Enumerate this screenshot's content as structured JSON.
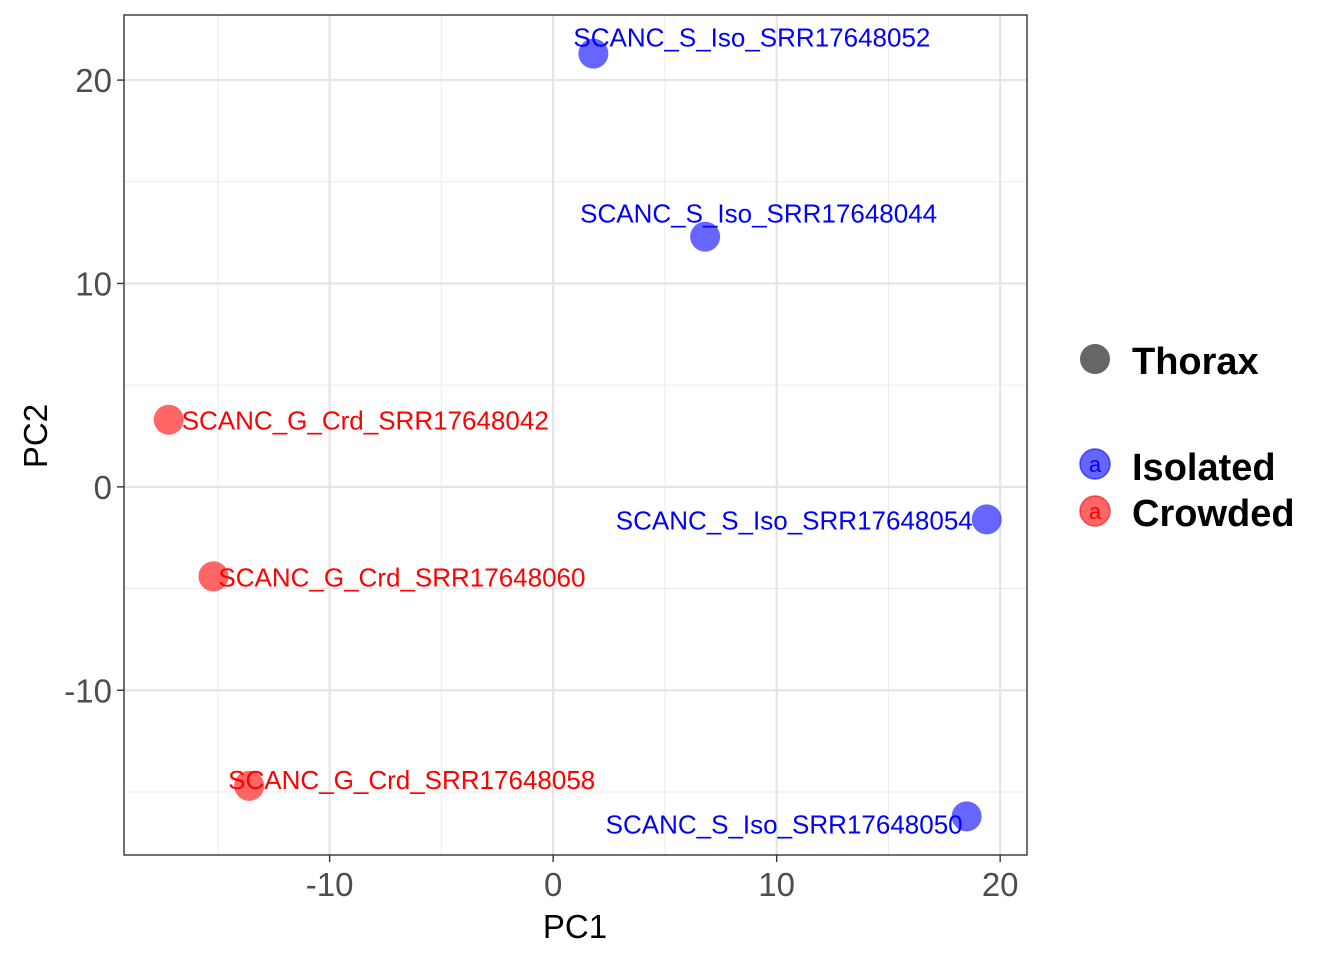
{
  "chart_data": {
    "type": "scatter",
    "xlabel": "PC1",
    "ylabel": "PC2",
    "xlim": [
      -19.2,
      21.2
    ],
    "ylim": [
      -18.1,
      23.2
    ],
    "x_ticks": [
      -10,
      0,
      10,
      20
    ],
    "y_ticks": [
      -10,
      0,
      10,
      20
    ],
    "grid": true,
    "legend_position": "right",
    "legend": {
      "shape_title": "Thorax",
      "groups": [
        {
          "name": "Isolated",
          "color": "#0000FF",
          "key_letter": "a"
        },
        {
          "name": "Crowded",
          "color": "#FF0000",
          "key_letter": "a"
        }
      ]
    },
    "series": [
      {
        "name": "Isolated",
        "color": "#0000FF",
        "points": [
          {
            "x": 1.8,
            "y": 21.3,
            "label": "SCANC_S_Iso_SRR17648052"
          },
          {
            "x": 6.8,
            "y": 12.3,
            "label": "SCANC_S_Iso_SRR17648044"
          },
          {
            "x": 19.4,
            "y": -1.6,
            "label": "SCANC_S_Iso_SRR17648054"
          },
          {
            "x": 18.5,
            "y": -16.2,
            "label": "SCANC_S_Iso_SRR17648050"
          }
        ]
      },
      {
        "name": "Crowded",
        "color": "#FF0000",
        "points": [
          {
            "x": -17.2,
            "y": 3.3,
            "label": "SCANC_G_Crd_SRR17648042"
          },
          {
            "x": -15.2,
            "y": -4.4,
            "label": "SCANC_G_Crd_SRR17648060"
          },
          {
            "x": -13.6,
            "y": -14.7,
            "label": "SCANC_G_Crd_SRR17648058"
          }
        ]
      }
    ]
  }
}
